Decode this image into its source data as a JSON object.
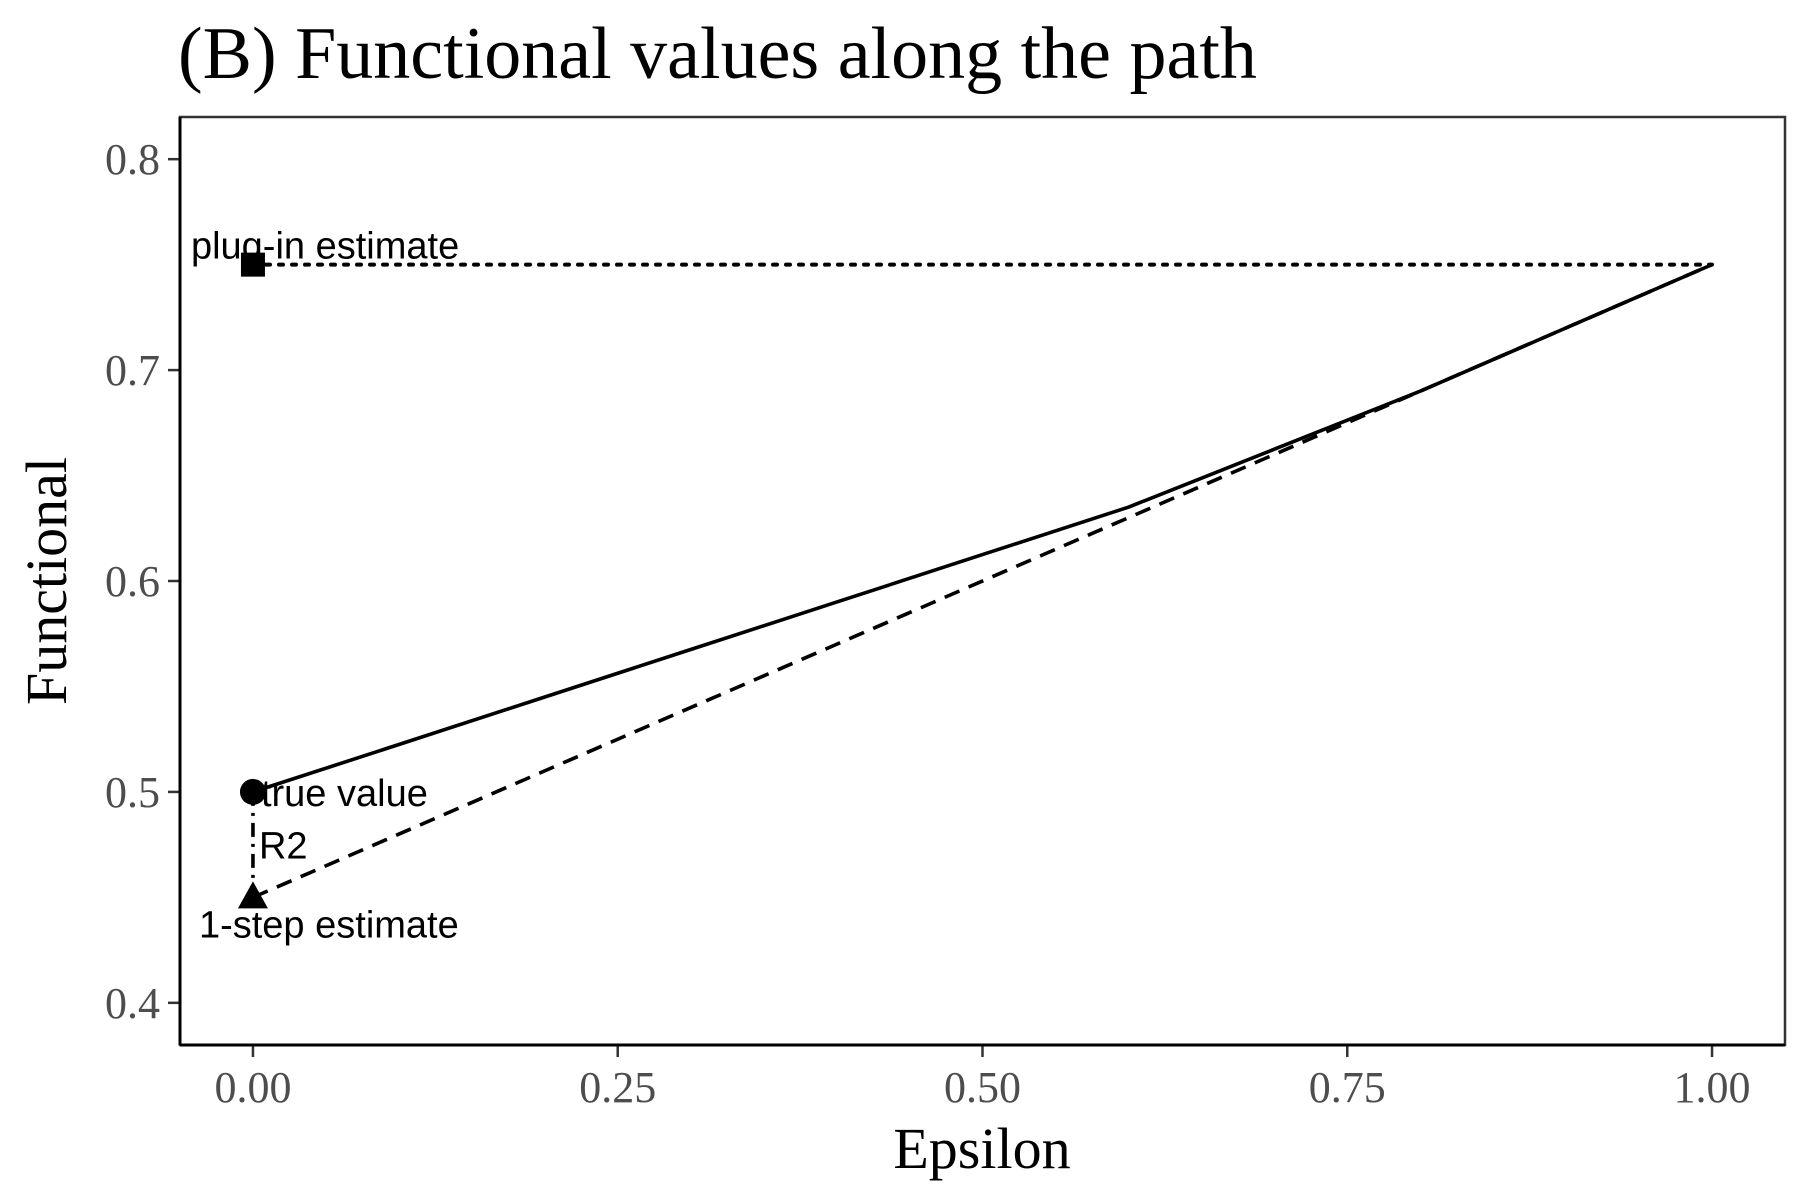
{
  "chart_data": {
    "type": "line",
    "title": "(B) Functional values along the path",
    "xlabel": "Epsilon",
    "ylabel": "Functional",
    "xlim": [
      -0.05,
      1.05
    ],
    "ylim": [
      0.38,
      0.82
    ],
    "x_ticks": [
      0.0,
      0.25,
      0.5,
      0.75,
      1.0
    ],
    "x_tick_labels": [
      "0.00",
      "0.25",
      "0.50",
      "0.75",
      "1.00"
    ],
    "y_ticks": [
      0.4,
      0.5,
      0.6,
      0.7,
      0.8
    ],
    "y_tick_labels": [
      "0.4",
      "0.5",
      "0.6",
      "0.7",
      "0.8"
    ],
    "grid": false,
    "color": "#000000",
    "series": [
      {
        "style": "solid",
        "x": [
          0.0,
          0.1,
          0.2,
          0.3,
          0.4,
          0.5,
          0.6,
          0.7,
          0.8,
          0.9,
          1.0
        ],
        "y": [
          0.5,
          0.5225,
          0.545,
          0.5675,
          0.59,
          0.6125,
          0.635,
          0.6625,
          0.69,
          0.72,
          0.75
        ]
      },
      {
        "style": "dashed",
        "x": [
          0.0,
          1.0
        ],
        "y": [
          0.45,
          0.75
        ]
      },
      {
        "style": "dotted",
        "x": [
          0.0,
          1.0
        ],
        "y": [
          0.75,
          0.75
        ]
      }
    ],
    "points": [
      {
        "label": "plug-in estimate",
        "x": 0.0,
        "y": 0.75,
        "shape": "square"
      },
      {
        "label": "true value",
        "x": 0.0,
        "y": 0.5,
        "shape": "circle"
      },
      {
        "label": "1-step estimate",
        "x": 0.0,
        "y": 0.45,
        "shape": "triangle"
      }
    ],
    "annotations": [
      {
        "text": "R2",
        "x": 0.0,
        "y": 0.475
      }
    ],
    "residual_segment": {
      "x": 0.0,
      "y_from": 0.45,
      "y_to": 0.5,
      "style": "dashdot"
    }
  }
}
